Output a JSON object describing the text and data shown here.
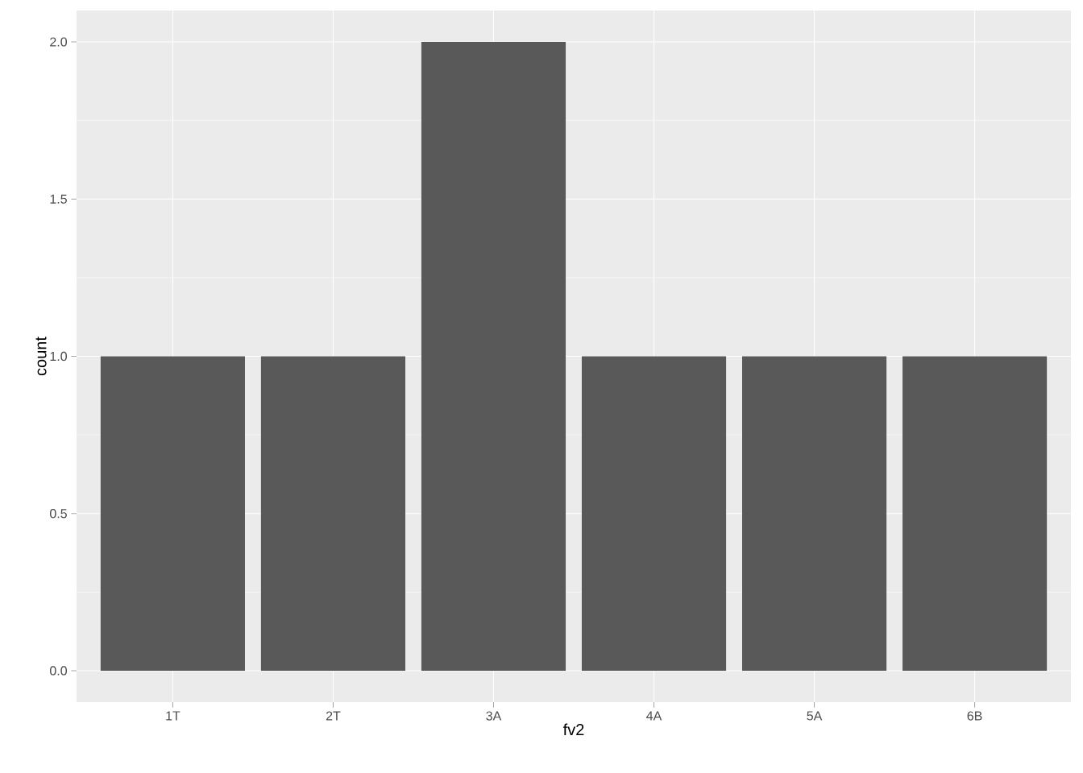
{
  "chart_data": {
    "type": "bar",
    "xlabel": "fv2",
    "ylabel": "count",
    "categories": [
      "1T",
      "2T",
      "3A",
      "4A",
      "5A",
      "6B"
    ],
    "values": [
      1,
      1,
      2,
      1,
      1,
      1
    ],
    "color": "#595959",
    "ylim": [
      -0.1,
      2.1
    ],
    "yticks": [
      {
        "value": 0,
        "label": "0.0"
      },
      {
        "value": 0.5,
        "label": "0.5"
      },
      {
        "value": 1,
        "label": "1.0"
      },
      {
        "value": 1.5,
        "label": "1.5"
      },
      {
        "value": 2,
        "label": "2.0"
      }
    ],
    "grid": true
  }
}
